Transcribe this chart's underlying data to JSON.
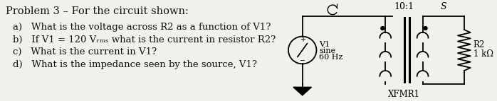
{
  "title": "Problem 3 – For the circuit shown:",
  "questions": [
    "a)   What is the voltage across R2 as a function of V1?",
    "b)   If V1 = 120 Vᵣₘₛ what is the current in resistor R2?",
    "c)   What is the current in V1?",
    "d)   What is the impedance seen by the source, V1?"
  ],
  "bg_color": "#f2f0ec",
  "text_color": "#111111",
  "circuit_label_v1": "V1",
  "circuit_label_sine": "sine",
  "circuit_label_freq": "60 Hz",
  "circuit_label_ratio": "10:1",
  "circuit_label_s": "S",
  "circuit_label_xfmr": "XFMR1",
  "circuit_label_r2": "R2",
  "circuit_label_r2val": "1 kΩ",
  "font_size_title": 10.5,
  "font_size_questions": 9.5,
  "font_size_circuit": 8.0
}
